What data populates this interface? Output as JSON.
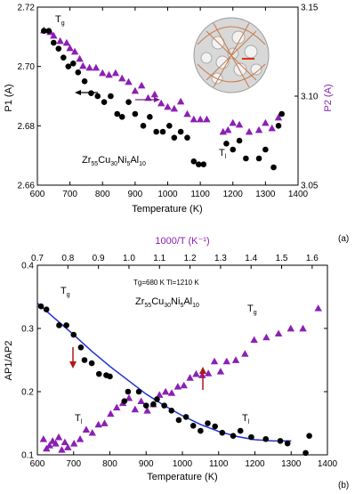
{
  "chart_data": [
    {
      "type": "scatter",
      "panel_label": "(a)",
      "xlabel": "Temperature (K)",
      "ylabel_left": "P1 (A)",
      "ylabel_right": "P2 (A)",
      "xlim": [
        600,
        1400
      ],
      "ylim_left": [
        2.66,
        2.72
      ],
      "ylim_right": [
        3.05,
        3.15
      ],
      "xticks": [
        "600",
        "700",
        "800",
        "900",
        "1000",
        "1100",
        "1200",
        "1300",
        "1400"
      ],
      "yticks_left": [
        "2.66",
        "2.68",
        "2.70",
        "2.72"
      ],
      "yticks_right": [
        "3.05",
        "3.10",
        "3.15"
      ],
      "annotations": {
        "composition": "Zr55Cu30Ni5Al10",
        "tg": "Tg",
        "tl": "Tl"
      },
      "colors": {
        "p1": "#000000",
        "p2": "#8B1FB5",
        "arrow_p1": "#000000",
        "arrow_p2": "#7a1a8a"
      },
      "series": [
        {
          "name": "P1",
          "axis": "left",
          "marker": "circle",
          "x": [
            620,
            635,
            650,
            665,
            680,
            695,
            710,
            725,
            745,
            765,
            785,
            805,
            825,
            845,
            860,
            880,
            900,
            925,
            945,
            965,
            985,
            1005,
            1020,
            1040,
            1060,
            1080,
            1095,
            1110,
            1180,
            1200,
            1220,
            1240,
            1280,
            1300,
            1325,
            1340,
            1350
          ],
          "y": [
            2.712,
            2.712,
            2.708,
            2.706,
            2.703,
            2.7,
            2.701,
            2.698,
            2.695,
            2.691,
            2.69,
            2.688,
            2.69,
            2.684,
            2.683,
            2.688,
            2.684,
            2.68,
            2.683,
            2.678,
            2.678,
            2.68,
            2.676,
            2.678,
            2.676,
            2.668,
            2.667,
            2.667,
            2.674,
            2.672,
            2.675,
            2.669,
            2.669,
            2.672,
            2.666,
            2.68,
            2.684
          ]
        },
        {
          "name": "P2",
          "axis": "right",
          "marker": "triangle",
          "x": [
            620,
            640,
            650,
            670,
            690,
            700,
            715,
            730,
            740,
            760,
            780,
            800,
            820,
            840,
            860,
            880,
            900,
            920,
            940,
            960,
            980,
            1000,
            1020,
            1040,
            1060,
            1080,
            1100,
            1120,
            1170,
            1185,
            1200,
            1220,
            1250,
            1280,
            1300,
            1320,
            1340
          ],
          "y": [
            3.137,
            3.136,
            3.134,
            3.131,
            3.13,
            3.127,
            3.125,
            3.121,
            3.117,
            3.116,
            3.116,
            3.113,
            3.112,
            3.113,
            3.11,
            3.108,
            3.103,
            3.106,
            3.099,
            3.101,
            3.096,
            3.094,
            3.093,
            3.097,
            3.09,
            3.087,
            3.087,
            3.087,
            3.08,
            3.081,
            3.085,
            3.084,
            3.08,
            3.081,
            3.085,
            3.082,
            3.088
          ]
        }
      ]
    },
    {
      "type": "scatter",
      "panel_label": "(b)",
      "xlabel": "Temperature (K)",
      "x2label": "1000/T (K⁻¹)",
      "ylabel": "AP1/AP2",
      "xlim": [
        600,
        1400
      ],
      "x2lim": [
        0.7,
        1.65
      ],
      "ylim": [
        0.1,
        0.4
      ],
      "xticks": [
        "600",
        "700",
        "800",
        "900",
        "1000",
        "1100",
        "1200",
        "1300",
        "1400"
      ],
      "x2ticks": [
        "0.7",
        "0.8",
        "0.9",
        "1.0",
        "1.1",
        "1.2",
        "1.3",
        "1.4",
        "1.5",
        "1.6"
      ],
      "yticks": [
        "0.1",
        "0.2",
        "0.3",
        "0.4"
      ],
      "annotations": {
        "composition": "Zr55Cu30Ni5Al10",
        "temps": "Tg=680 K   Tl=1210 K",
        "tg_left": "Tg",
        "tg_right": "Tg",
        "tl_left": "Tl",
        "tl_right": "Tl"
      },
      "colors": {
        "points": "#000000",
        "triangles": "#8B1FB5",
        "fit": "#1f2fd0",
        "arrows": "#b01818"
      },
      "series": [
        {
          "name": "AP1/AP2 vs T",
          "axis": "bottom",
          "marker": "circle",
          "x": [
            610,
            625,
            660,
            680,
            700,
            720,
            730,
            750,
            770,
            790,
            800,
            840,
            850,
            880,
            900,
            920,
            930,
            950,
            970,
            990,
            1010,
            1030,
            1050,
            1070,
            1090,
            1110,
            1140,
            1160,
            1190,
            1230,
            1270,
            1290,
            1340,
            1350
          ],
          "y": [
            0.335,
            0.33,
            0.305,
            0.305,
            0.29,
            0.27,
            0.25,
            0.245,
            0.228,
            0.226,
            0.224,
            0.185,
            0.2,
            0.2,
            0.178,
            0.18,
            0.188,
            0.178,
            0.17,
            0.155,
            0.16,
            0.146,
            0.138,
            0.15,
            0.145,
            0.135,
            0.13,
            0.138,
            0.128,
            0.125,
            0.122,
            0.118,
            0.103,
            0.13
          ]
        },
        {
          "name": "AP1/AP2 vs 1000/T",
          "axis": "top",
          "marker": "triangle",
          "x": [
            0.72,
            0.73,
            0.74,
            0.75,
            0.76,
            0.77,
            0.78,
            0.79,
            0.8,
            0.82,
            0.84,
            0.86,
            0.88,
            0.9,
            0.92,
            0.94,
            0.96,
            0.98,
            1.0,
            1.02,
            1.04,
            1.06,
            1.08,
            1.1,
            1.12,
            1.14,
            1.16,
            1.18,
            1.2,
            1.22,
            1.24,
            1.26,
            1.28,
            1.3,
            1.32,
            1.35,
            1.38,
            1.41,
            1.45,
            1.49,
            1.53,
            1.57,
            1.62
          ],
          "y": [
            0.125,
            0.11,
            0.115,
            0.122,
            0.118,
            0.128,
            0.108,
            0.12,
            0.112,
            0.118,
            0.125,
            0.14,
            0.135,
            0.148,
            0.15,
            0.165,
            0.175,
            0.182,
            0.19,
            0.172,
            0.185,
            0.17,
            0.18,
            0.195,
            0.2,
            0.198,
            0.208,
            0.21,
            0.222,
            0.228,
            0.226,
            0.229,
            0.248,
            0.232,
            0.248,
            0.25,
            0.26,
            0.282,
            0.286,
            0.292,
            0.3,
            0.3,
            0.332
          ]
        },
        {
          "name": "fit",
          "axis": "bottom",
          "marker": "line",
          "x": [
            600,
            650,
            700,
            750,
            800,
            850,
            900,
            950,
            1000,
            1050,
            1100,
            1150,
            1200,
            1250,
            1300
          ],
          "y": [
            0.34,
            0.315,
            0.29,
            0.264,
            0.24,
            0.218,
            0.196,
            0.178,
            0.162,
            0.148,
            0.137,
            0.129,
            0.124,
            0.122,
            0.122
          ]
        }
      ]
    }
  ]
}
